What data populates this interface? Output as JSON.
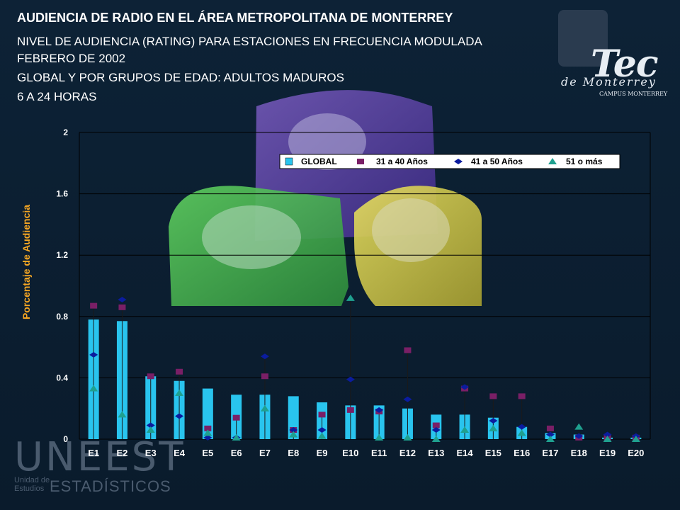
{
  "header": {
    "title": "AUDIENCIA DE RADIO EN EL ÁREA METROPOLITANA DE MONTERREY",
    "line1": "NIVEL DE AUDIENCIA (RATING) PARA ESTACIONES EN FRECUENCIA MODULADA",
    "line2": "FEBRERO DE 2002",
    "line3": "GLOBAL Y POR GRUPOS DE EDAD: ADULTOS MADUROS",
    "line4": "6 A 24 HORAS"
  },
  "logos": {
    "tec": {
      "word": "Tec",
      "sub": "de Monterrey",
      "campus": "CAMPUS MONTERREY"
    },
    "uneest": {
      "big": "UNEEST",
      "small1": "Unidad de Estudios",
      "small2": "ESTADÍSTICOS"
    }
  },
  "colors": {
    "global": "#29c4ee",
    "age31_40": "#7a1f66",
    "age41_50": "#0b1c9e",
    "age51": "#1fa08f",
    "ylabel": "#f5a623"
  },
  "chart_data": {
    "type": "bar",
    "ylabel": "Porcentaje de Audiencia",
    "ylim": [
      0,
      2
    ],
    "yticks": [
      "0",
      "0.4",
      "0.8",
      "1.2",
      "1.6",
      "2"
    ],
    "grid": true,
    "legend_position": "top-right",
    "categories": [
      "E1",
      "E2",
      "E3",
      "E4",
      "E5",
      "E6",
      "E7",
      "E8",
      "E9",
      "E10",
      "E11",
      "E12",
      "E13",
      "E14",
      "E15",
      "E16",
      "E17",
      "E18",
      "E19",
      "E20"
    ],
    "series": [
      {
        "name": "GLOBAL",
        "kind": "bar",
        "values": [
          0.78,
          0.77,
          0.41,
          0.38,
          0.33,
          0.29,
          0.29,
          0.28,
          0.24,
          0.22,
          0.22,
          0.2,
          0.16,
          0.16,
          0.14,
          0.08,
          0.04,
          0.03,
          0.01,
          0.01
        ]
      },
      {
        "name": "31 a 40 Años",
        "kind": "square",
        "values": [
          0.87,
          0.86,
          0.41,
          0.44,
          0.07,
          0.14,
          0.41,
          0.06,
          0.16,
          0.19,
          0.18,
          0.58,
          0.09,
          0.33,
          0.28,
          0.28,
          0.07,
          0.01,
          0.01,
          0.01
        ]
      },
      {
        "name": "41 a 50 Años",
        "kind": "diamond",
        "values": [
          0.55,
          0.91,
          0.09,
          0.15,
          0.01,
          0.01,
          0.54,
          0.06,
          0.06,
          0.39,
          0.19,
          0.26,
          0.06,
          0.34,
          0.12,
          0.08,
          0.03,
          0.02,
          0.03,
          0.02
        ]
      },
      {
        "name": "51 o más",
        "kind": "triangle",
        "values": [
          0.33,
          0.16,
          0.06,
          0.3,
          0.04,
          0.01,
          0.2,
          0.03,
          0.02,
          0.92,
          0.01,
          0.01,
          0.0,
          0.06,
          0.07,
          0.04,
          0.0,
          0.08,
          0.0,
          0.0
        ]
      }
    ]
  }
}
